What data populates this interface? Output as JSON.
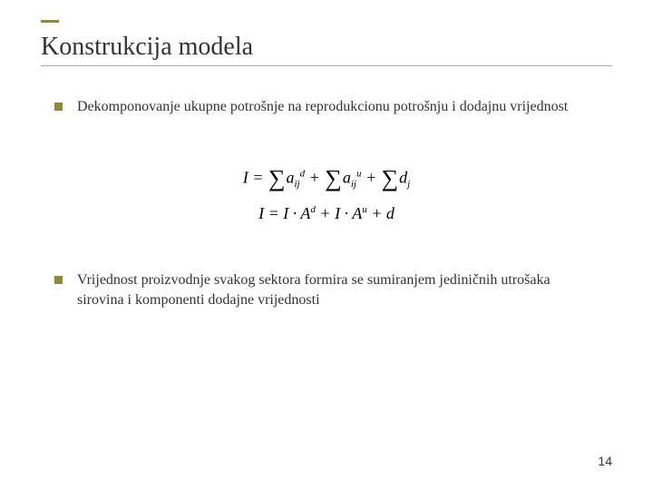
{
  "title": "Konstrukcija modela",
  "bullets": {
    "item1": "Dekomponovanje ukupne potrošnje na reprodukcionu potrošnju i dodajnu vrijednost",
    "item2": "Vrijednost proizvodnje svakog sektora formira se sumiranjem jediničnih utrošaka sirovina i komponenti dodajne vrijednosti"
  },
  "page_number": "14",
  "colors": {
    "accent": "#8b8b3e",
    "text": "#333333",
    "underline": "#aaaaaa",
    "background": "#ffffff"
  }
}
